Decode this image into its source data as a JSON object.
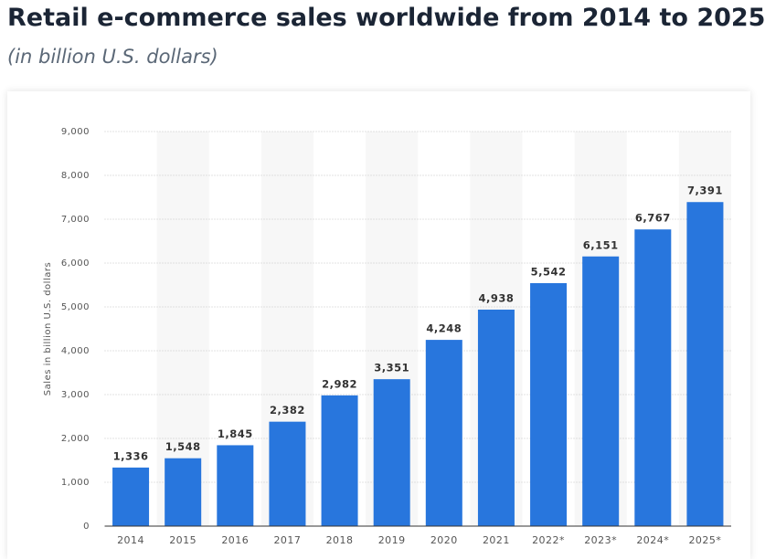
{
  "chart_data": {
    "type": "bar",
    "title": "Retail e-commerce sales worldwide from 2014 to 2025",
    "subtitle": "(in billion U.S. dollars)",
    "y_label": "Sales in billion U.S. dollars",
    "categories": [
      "2014",
      "2015",
      "2016",
      "2017",
      "2018",
      "2019",
      "2020",
      "2021",
      "2022*",
      "2023*",
      "2024*",
      "2025*"
    ],
    "values": [
      1336,
      1548,
      1845,
      2382,
      2982,
      3351,
      4248,
      4938,
      5542,
      6151,
      6767,
      7391
    ],
    "value_labels": [
      "1,336",
      "1,548",
      "1,845",
      "2,382",
      "2,982",
      "3,351",
      "4,248",
      "4,938",
      "5,542",
      "6,151",
      "6,767",
      "7,391"
    ],
    "color": "#2876dd",
    "ylim": [
      0,
      9000
    ],
    "yticks": [
      0,
      {
        "value": 1000,
        "label": "1,000"
      },
      {
        "value": 2000,
        "label": "2,000"
      },
      {
        "value": 3000,
        "label": "3,000"
      },
      {
        "value": 4000,
        "label": "4,000"
      },
      {
        "value": 5000,
        "label": "5,000"
      },
      {
        "value": 6000,
        "label": "6,000"
      },
      {
        "value": 7000,
        "label": "7,000"
      },
      {
        "value": 8000,
        "label": "8,000"
      },
      {
        "value": 9000,
        "label": "9,000"
      }
    ],
    "grid": true
  }
}
